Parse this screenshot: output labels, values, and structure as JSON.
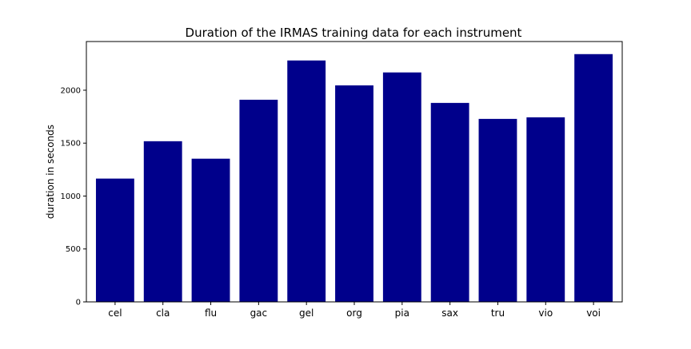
{
  "chart_data": {
    "type": "bar",
    "title": "Duration of the IRMAS training data for each instrument",
    "xlabel": "",
    "ylabel": "duration in seconds",
    "categories": [
      "cel",
      "cla",
      "flu",
      "gac",
      "gel",
      "org",
      "pia",
      "sax",
      "tru",
      "vio",
      "voi"
    ],
    "values": [
      1165,
      1518,
      1353,
      1910,
      2281,
      2046,
      2168,
      1880,
      1729,
      1744,
      2341
    ],
    "yticks": [
      0,
      500,
      1000,
      1500,
      2000
    ],
    "ylim": [
      0,
      2460
    ],
    "bar_color": "#00008b",
    "grid": false
  }
}
